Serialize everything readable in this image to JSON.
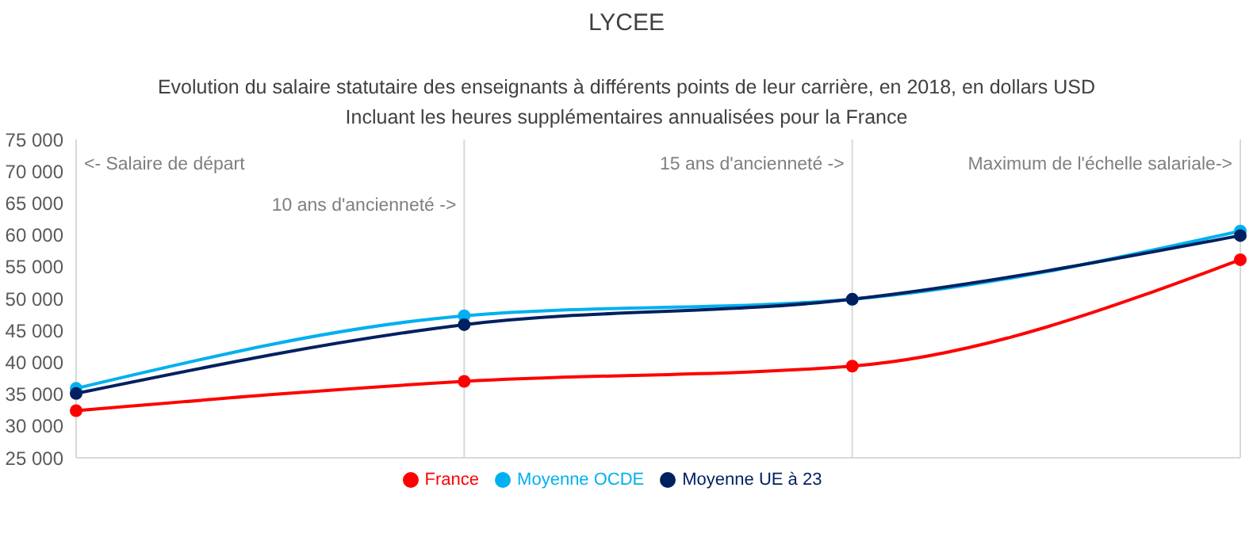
{
  "chart_data": {
    "type": "line",
    "title": "LYCEE",
    "subtitle": "Evolution du salaire statutaire des enseignants à différents points de leur carrière, en 2018, en dollars USD\nIncluant les heures supplémentaires annualisées pour la France",
    "categories": [
      null,
      null,
      null,
      null
    ],
    "series": [
      {
        "name": "France",
        "color": "#ff0000",
        "values": [
          32400,
          37000,
          39400,
          56100
        ]
      },
      {
        "name": "Moyenne OCDE",
        "color": "#00b0f0",
        "values": [
          35900,
          47300,
          49900,
          60600
        ]
      },
      {
        "name": "Moyenne UE à 23",
        "color": "#002060",
        "values": [
          35100,
          45900,
          49900,
          59900
        ]
      }
    ],
    "ylim": [
      25000,
      75000
    ],
    "yticks": [
      {
        "value": 25000,
        "label": "25 000"
      },
      {
        "value": 30000,
        "label": "30 000"
      },
      {
        "value": 35000,
        "label": "35 000"
      },
      {
        "value": 40000,
        "label": "40 000"
      },
      {
        "value": 45000,
        "label": "45 000"
      },
      {
        "value": 50000,
        "label": "50 000"
      },
      {
        "value": 55000,
        "label": "55 000"
      },
      {
        "value": 60000,
        "label": "60 000"
      },
      {
        "value": 65000,
        "label": "65 000"
      },
      {
        "value": 70000,
        "label": "70 000"
      },
      {
        "value": 75000,
        "label": "75 000"
      }
    ],
    "annotations": [
      "<- Salaire de départ",
      "10 ans d'ancienneté ->",
      "15 ans d'ancienneté ->",
      "Maximum de l'échelle salariale->"
    ],
    "grid": "x",
    "legend": "bottom",
    "marker": "circle",
    "line_style": "solid"
  }
}
